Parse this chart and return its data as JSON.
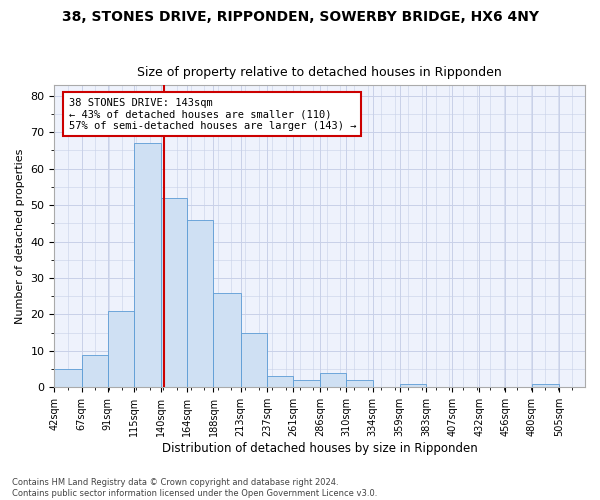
{
  "title1": "38, STONES DRIVE, RIPPONDEN, SOWERBY BRIDGE, HX6 4NY",
  "title2": "Size of property relative to detached houses in Ripponden",
  "xlabel": "Distribution of detached houses by size in Ripponden",
  "ylabel": "Number of detached properties",
  "bar_color": "#cfe0f3",
  "bar_edge_color": "#5b9bd5",
  "property_line_x": 143,
  "annotation_text": "38 STONES DRIVE: 143sqm\n← 43% of detached houses are smaller (110)\n57% of semi-detached houses are larger (143) →",
  "annotation_box_color": "#ffffff",
  "annotation_box_edge": "#cc0000",
  "vline_color": "#cc0000",
  "bins": [
    42,
    67,
    91,
    115,
    140,
    164,
    188,
    213,
    237,
    261,
    286,
    310,
    334,
    359,
    383,
    407,
    432,
    456,
    480,
    505,
    529
  ],
  "heights": [
    5,
    9,
    21,
    67,
    52,
    46,
    26,
    15,
    3,
    2,
    4,
    2,
    0,
    1,
    0,
    0,
    0,
    0,
    1,
    0
  ],
  "ylim": [
    0,
    83
  ],
  "yticks": [
    0,
    10,
    20,
    30,
    40,
    50,
    60,
    70,
    80
  ],
  "grid_color": "#c8d0e8",
  "background_color": "#eef2fc",
  "footnote": "Contains HM Land Registry data © Crown copyright and database right 2024.\nContains public sector information licensed under the Open Government Licence v3.0.",
  "title_fontsize": 10,
  "subtitle_fontsize": 9,
  "annot_fontsize": 7.5,
  "xlabel_fontsize": 8.5,
  "ylabel_fontsize": 8,
  "tick_fontsize": 7,
  "footnote_fontsize": 6
}
